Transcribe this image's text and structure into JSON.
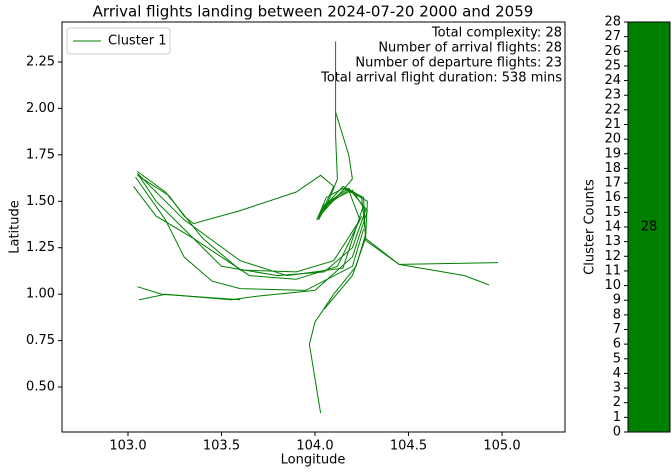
{
  "chart_data": [
    {
      "type": "line",
      "title": "Arrival flights landing between 2024-07-20 2000 and 2059",
      "xlabel": "Longitude",
      "ylabel": "Latitude",
      "annotations": [
        "Total complexity: 28",
        "Number of arrival flights: 28",
        "Number of departure flights: 23",
        "Total arrival flight duration: 538 mins"
      ],
      "legend": "upper left",
      "xlim": [
        102.647,
        105.337
      ],
      "ylim": [
        0.258,
        2.465
      ],
      "xticks": [
        {
          "value": 103,
          "label": "103.0"
        },
        {
          "value": 103.5,
          "label": "103.5"
        },
        {
          "value": 104,
          "label": "104.0"
        },
        {
          "value": 104.5,
          "label": "104.5"
        },
        {
          "value": 105,
          "label": "105.0"
        }
      ],
      "yticks": [
        {
          "value": 0.5,
          "label": "0.50"
        },
        {
          "value": 0.75,
          "label": "0.75"
        },
        {
          "value": 1,
          "label": "1.00"
        },
        {
          "value": 1.25,
          "label": "1.25"
        },
        {
          "value": 1.5,
          "label": "1.50"
        },
        {
          "value": 1.75,
          "label": "1.75"
        },
        {
          "value": 2,
          "label": "2.00"
        },
        {
          "value": 2.25,
          "label": "2.25"
        }
      ],
      "series": [
        {
          "name": "Cluster 1",
          "color": "#008000",
          "x": [
            104.03,
            103.97,
            104.0,
            104.1,
            104.22,
            104.27,
            104.25,
            104.15,
            104.06,
            104.01,
            null,
            104.11,
            104.11,
            104.12,
            104.08,
            104.02,
            null,
            104.11,
            104.18,
            104.2,
            104.15,
            104.05,
            104.01,
            null,
            104.98,
            104.45,
            104.27,
            104.26,
            104.15,
            104.04,
            104.01,
            null,
            104.93,
            104.8,
            104.45,
            104.27,
            104.28,
            104.16,
            104.03,
            null,
            103.06,
            103.2,
            103.55,
            103.7,
            104.0,
            104.2,
            104.28,
            104.18,
            104.05,
            104.01,
            null,
            103.05,
            103.18,
            103.6,
            null,
            103.05,
            103.15,
            103.3,
            103.5,
            103.8,
            104.05,
            104.2,
            104.27,
            104.2,
            104.08,
            104.02,
            null,
            103.05,
            103.2,
            103.4,
            103.6,
            103.9,
            104.1,
            104.24,
            104.18,
            104.05,
            null,
            103.03,
            103.15,
            103.35,
            103.65,
            103.9,
            104.12,
            104.25,
            null,
            103.05,
            103.22,
            103.3,
            103.35,
            103.6,
            103.9,
            104.03,
            104.1,
            104.05,
            104.01,
            null,
            103.04,
            103.2,
            103.3,
            103.45,
            103.6,
            103.95,
            104.2,
            104.26,
            null,
            103.05,
            103.3,
            103.6,
            103.85,
            104.15,
            104.26,
            null,
            104.05,
            104.2,
            104.27
          ],
          "y": [
            0.36,
            0.73,
            0.85,
            1.0,
            1.15,
            1.32,
            1.52,
            1.57,
            1.52,
            1.4,
            null,
            2.36,
            1.85,
            1.62,
            1.52,
            1.4,
            null,
            1.98,
            1.75,
            1.62,
            1.56,
            1.45,
            1.4,
            null,
            1.17,
            1.16,
            1.3,
            1.52,
            1.58,
            1.46,
            1.4,
            null,
            1.05,
            1.1,
            1.16,
            1.29,
            1.5,
            1.57,
            1.43,
            null,
            0.97,
            1.0,
            0.97,
            0.99,
            1.02,
            1.2,
            1.45,
            1.57,
            1.48,
            1.4,
            null,
            1.04,
            1.0,
            0.97,
            null,
            1.65,
            1.5,
            1.35,
            1.15,
            1.1,
            1.12,
            1.25,
            1.45,
            1.56,
            1.5,
            1.41,
            null,
            1.66,
            1.55,
            1.3,
            1.13,
            1.12,
            1.18,
            1.4,
            1.56,
            1.47,
            null,
            1.58,
            1.42,
            1.3,
            1.1,
            1.08,
            1.15,
            1.42,
            null,
            1.64,
            1.53,
            1.42,
            1.38,
            1.45,
            1.55,
            1.64,
            1.58,
            1.47,
            1.4,
            null,
            1.63,
            1.4,
            1.2,
            1.07,
            1.03,
            1.02,
            1.15,
            1.35,
            null,
            1.65,
            1.4,
            1.18,
            1.1,
            1.14,
            1.48,
            null,
            0.92,
            1.1,
            1.3
          ]
        }
      ]
    },
    {
      "type": "bar",
      "ylabel": "Cluster Counts",
      "categories": [
        null
      ],
      "values": [
        28
      ],
      "color": "#008000",
      "ylim": [
        0,
        28
      ],
      "yticks": [
        0,
        1,
        2,
        3,
        4,
        5,
        6,
        7,
        8,
        9,
        10,
        11,
        12,
        13,
        14,
        15,
        16,
        17,
        18,
        19,
        20,
        21,
        22,
        23,
        24,
        25,
        26,
        27,
        28
      ]
    }
  ]
}
